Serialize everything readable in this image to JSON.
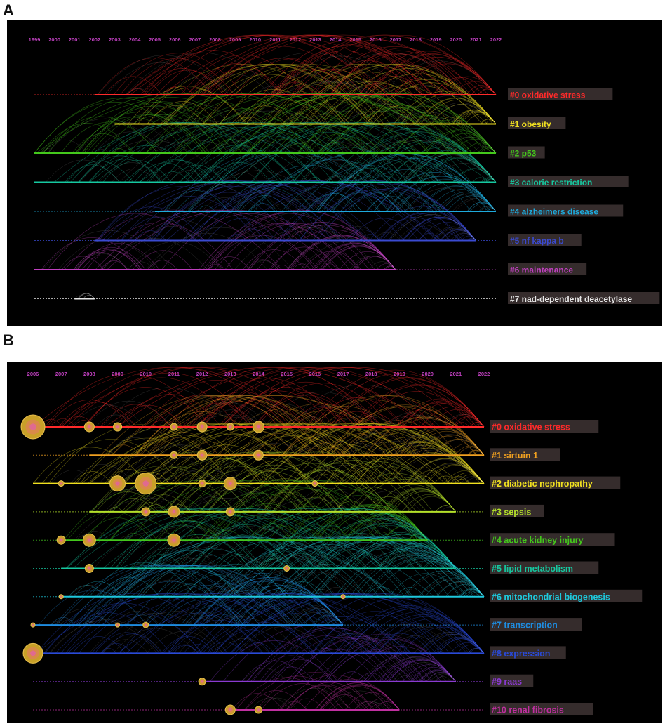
{
  "panels": [
    {
      "letter": "A",
      "years": [
        "1999",
        "2000",
        "2001",
        "2002",
        "2003",
        "2004",
        "2005",
        "2006",
        "2007",
        "2008",
        "2009",
        "2010",
        "2011",
        "2012",
        "2013",
        "2014",
        "2015",
        "2016",
        "2017",
        "2018",
        "2019",
        "2020",
        "2021",
        "2022"
      ],
      "clusters": [
        {
          "label": "#0 oxidative stress",
          "color": "#ff2a2a",
          "start": "2002",
          "end": "2022"
        },
        {
          "label": "#1 obesity",
          "color": "#f0e020",
          "start": "2003",
          "end": "2022"
        },
        {
          "label": "#2 p53",
          "color": "#44c81c",
          "start": "1999",
          "end": "2022"
        },
        {
          "label": "#3 calorie restriction",
          "color": "#16c8a0",
          "start": "1999",
          "end": "2022"
        },
        {
          "label": "#4 alzheimers disease",
          "color": "#1eaadc",
          "start": "2005",
          "end": "2022"
        },
        {
          "label": "#5 nf kappa b",
          "color": "#3a4ad0",
          "start": "2002",
          "end": "2021"
        },
        {
          "label": "#6 maintenance",
          "color": "#c040c0",
          "start": "1999",
          "end": "2017"
        },
        {
          "label": "#7 nad-dependent deacetylase",
          "color": "#e8e8e8",
          "start": "2001",
          "end": "2002"
        }
      ]
    },
    {
      "letter": "B",
      "years": [
        "2006",
        "2007",
        "2008",
        "2009",
        "2010",
        "2011",
        "2012",
        "2013",
        "2014",
        "2015",
        "2016",
        "2017",
        "2018",
        "2019",
        "2020",
        "2021",
        "2022"
      ],
      "clusters": [
        {
          "label": "#0 oxidative stress",
          "color": "#ff2a2a",
          "start": "2006",
          "end": "2022"
        },
        {
          "label": "#1 sirtuin 1",
          "color": "#f0a020",
          "start": "2008",
          "end": "2022"
        },
        {
          "label": "#2 diabetic nephropathy",
          "color": "#f0e020",
          "start": "2006",
          "end": "2022"
        },
        {
          "label": "#3 sepsis",
          "color": "#b4e02a",
          "start": "2008",
          "end": "2021"
        },
        {
          "label": "#4 acute kidney injury",
          "color": "#44c81c",
          "start": "2007",
          "end": "2020"
        },
        {
          "label": "#5 lipid metabolism",
          "color": "#16c8a0",
          "start": "2007",
          "end": "2021"
        },
        {
          "label": "#6 mitochondrial biogenesis",
          "color": "#1ec8dc",
          "start": "2007",
          "end": "2022"
        },
        {
          "label": "#7 transcription",
          "color": "#1e8ce0",
          "start": "2006",
          "end": "2017"
        },
        {
          "label": "#8 expression",
          "color": "#2a4ad8",
          "start": "2006",
          "end": "2022"
        },
        {
          "label": "#9 raas",
          "color": "#8a3ad0",
          "start": "2012",
          "end": "2021"
        },
        {
          "label": "#10 renal fibrosis",
          "color": "#c030a0",
          "start": "2013",
          "end": "2019"
        }
      ]
    }
  ]
}
